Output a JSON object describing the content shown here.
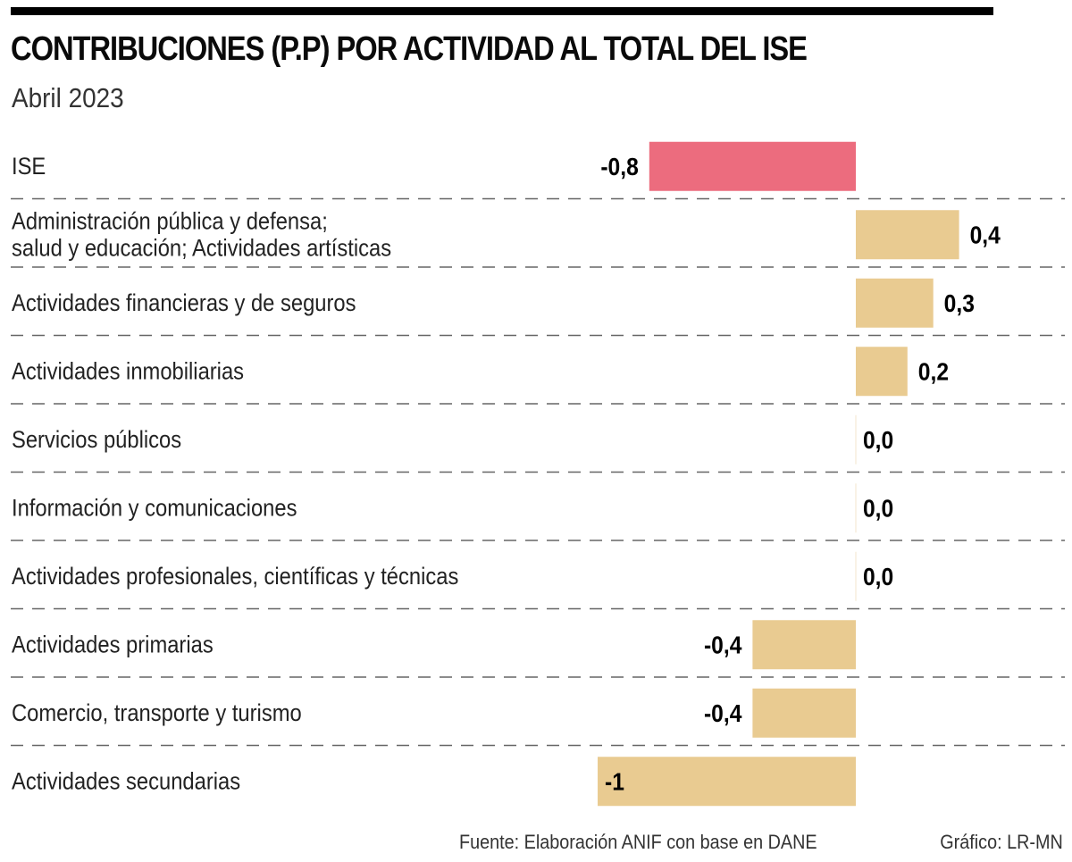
{
  "chart_data": {
    "type": "bar",
    "orientation": "horizontal",
    "title": "CONTRIBUCIONES (P.P) POR ACTIVIDAD AL TOTAL DEL ISE",
    "subtitle": "Abril 2023",
    "xlabel": "",
    "ylabel": "",
    "xlim": [
      -1.0,
      0.8
    ],
    "grid": "dashed row separators",
    "categories": [
      [
        "ISE"
      ],
      [
        "Administración pública y defensa;",
        "salud y educación; Actividades artísticas"
      ],
      [
        "Actividades financieras y de seguros"
      ],
      [
        "Actividades inmobiliarias"
      ],
      [
        "Servicios públicos"
      ],
      [
        "Información y comunicaciones"
      ],
      [
        "Actividades profesionales, científicas y técnicas"
      ],
      [
        "Actividades primarias"
      ],
      [
        "Comercio, transporte y turismo"
      ],
      [
        "Actividades secundarias"
      ]
    ],
    "values": [
      -0.8,
      0.4,
      0.3,
      0.2,
      0.0,
      0.0,
      0.0,
      -0.4,
      -0.4,
      -1.0
    ],
    "value_labels": [
      "-0,8",
      "0,4",
      "0,3",
      "0,2",
      "0,0",
      "0,0",
      "0,0",
      "-0,4",
      "-0,4",
      "-1"
    ],
    "highlight_index": 0,
    "colors": {
      "highlight": "#EC6C7E",
      "default": "#E9CB91",
      "separator": "#666666"
    }
  },
  "footer": {
    "source": "Fuente: Elaboración ANIF con base en DANE",
    "credit": "Gráfico: LR-MN"
  }
}
